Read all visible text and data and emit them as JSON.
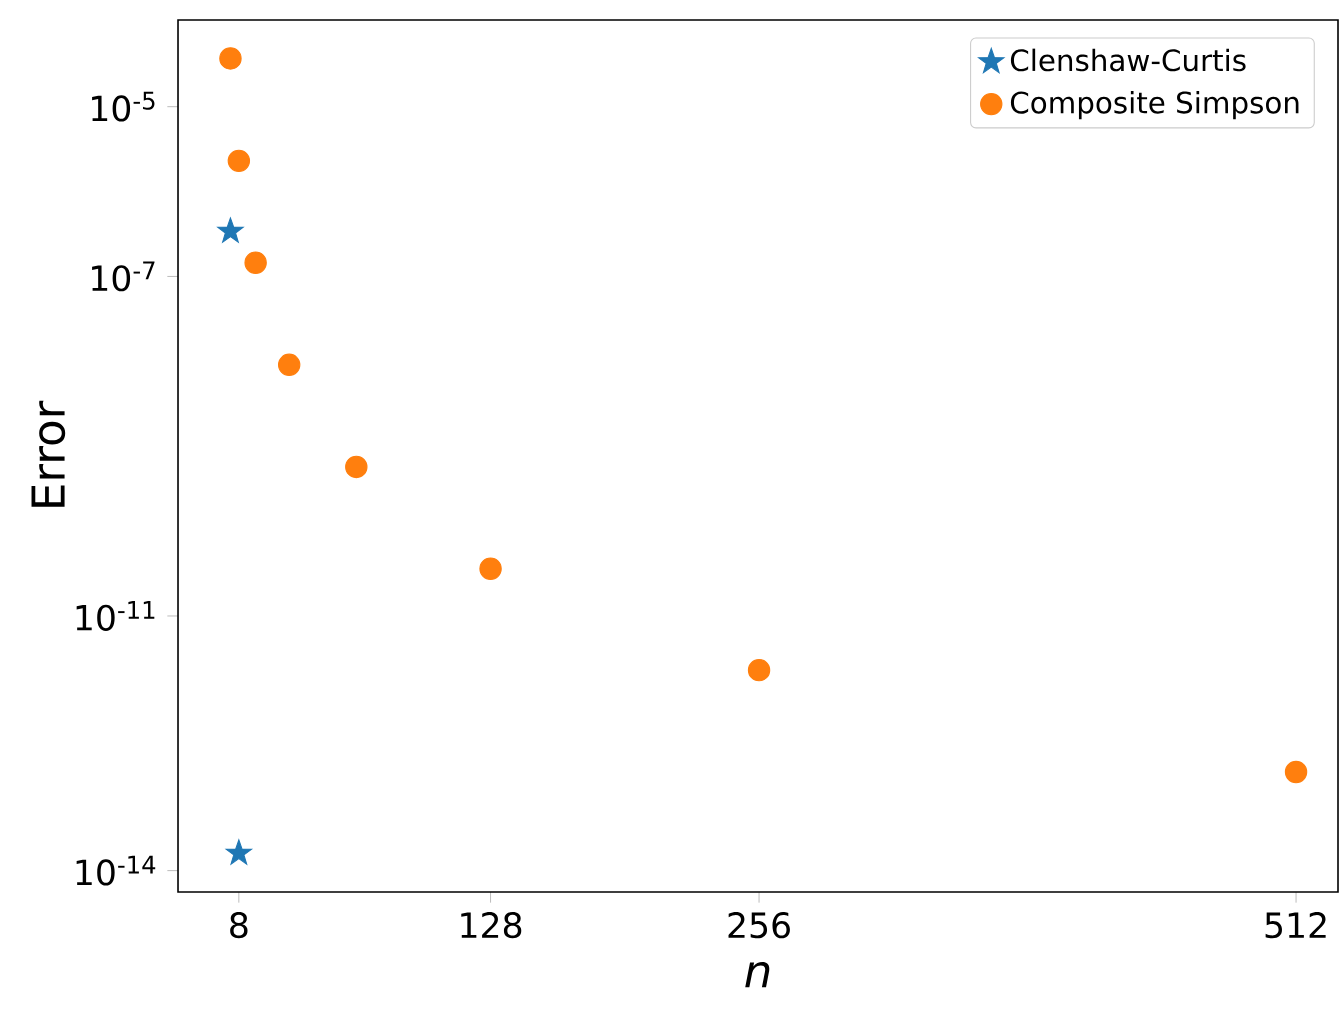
{
  "chart_data": {
    "type": "scatter",
    "xlabel": "n",
    "ylabel": "Error",
    "log": "y",
    "legend": "top right",
    "grid": false,
    "xlim": [
      -21,
      532
    ],
    "ylim": [
      5.6e-15,
      0.000105
    ],
    "xticks": [
      8,
      128,
      256,
      512
    ],
    "yticks": [
      {
        "value": 1e-05,
        "label": "10$^{-5}$"
      },
      {
        "value": 1e-07,
        "label": "10$^{-7}$"
      },
      {
        "value": 1e-11,
        "label": "10$^{-11}$"
      },
      {
        "value": 1e-14,
        "label": "10$^{-14}$"
      }
    ],
    "series": [
      {
        "name": "Clenshaw-Curtis",
        "color": "#1f77b4",
        "marker": "star",
        "x": [
          4,
          8
        ],
        "values": [
          3.4e-07,
          1.6e-14
        ]
      },
      {
        "name": "Composite Simpson",
        "color": "#ff7f0e",
        "marker": "circle",
        "x": [
          4,
          8,
          16,
          32,
          64,
          128,
          256,
          512
        ],
        "values": [
          3.7e-05,
          2.3e-06,
          1.45e-07,
          9.1e-09,
          5.7e-10,
          3.6e-11,
          2.3e-12,
          1.45e-13
        ]
      }
    ]
  }
}
